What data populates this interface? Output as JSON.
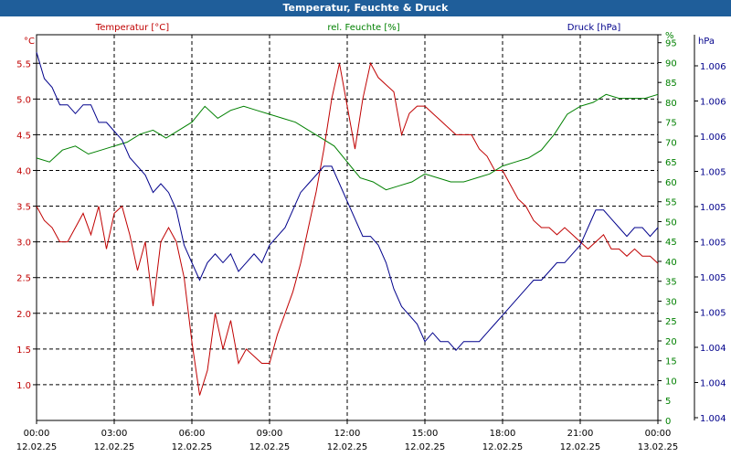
{
  "window": {
    "title": "Temperatur, Feuchte & Druck"
  },
  "chart_data": {
    "type": "line",
    "title": "Temperatur, Feuchte & Druck",
    "grid": true,
    "xlim": [
      0,
      24
    ],
    "x_ticks": [
      {
        "time": "00:00",
        "date": "12.02.25",
        "x": 0
      },
      {
        "time": "03:00",
        "date": "12.02.25",
        "x": 3
      },
      {
        "time": "06:00",
        "date": "12.02.25",
        "x": 6
      },
      {
        "time": "09:00",
        "date": "12.02.25",
        "x": 9
      },
      {
        "time": "12:00",
        "date": "12.02.25",
        "x": 12
      },
      {
        "time": "15:00",
        "date": "12.02.25",
        "x": 15
      },
      {
        "time": "18:00",
        "date": "12.02.25",
        "x": 18
      },
      {
        "time": "21:00",
        "date": "12.02.25",
        "x": 21
      },
      {
        "time": "00:00",
        "date": "13.02.25",
        "x": 24
      }
    ],
    "axes": {
      "temperature": {
        "label": "Temperatur [°C]",
        "unit": "°C",
        "ylim": [
          0.5,
          5.9
        ],
        "ticks": [
          "1.0",
          "1.5",
          "2.0",
          "2.5",
          "3.0",
          "3.5",
          "4.0",
          "4.5",
          "5.0",
          "5.5"
        ],
        "color": "#c00000"
      },
      "humidity": {
        "label": "rel. Feuchte [%]",
        "unit": "%",
        "ylim": [
          0,
          97
        ],
        "ticks": [
          "0",
          "5",
          "10",
          "15",
          "20",
          "25",
          "30",
          "35",
          "40",
          "45",
          "50",
          "55",
          "60",
          "65",
          "70",
          "75",
          "80",
          "85",
          "90",
          "95",
          "%"
        ],
        "color": "#008000"
      },
      "pressure": {
        "label": "Druck [hPa]",
        "unit": "hPa",
        "ylim": [
          1004.0,
          1006.2
        ],
        "ticks": [
          "1.004",
          "1.004",
          "1.004",
          "1.005",
          "1.005",
          "1.005",
          "1.005",
          "1.005",
          "1.006",
          "1.006",
          "1.006"
        ],
        "color": "#00008b"
      }
    },
    "series": [
      {
        "name": "Temperatur [°C]",
        "axis": "temperature",
        "color": "#c00000",
        "x": [
          0,
          0.3,
          0.6,
          0.9,
          1.2,
          1.5,
          1.8,
          2.1,
          2.4,
          2.7,
          3.0,
          3.3,
          3.6,
          3.9,
          4.2,
          4.5,
          4.8,
          5.1,
          5.4,
          5.7,
          6.0,
          6.3,
          6.6,
          6.9,
          7.2,
          7.5,
          7.8,
          8.1,
          8.4,
          8.7,
          9.0,
          9.3,
          9.6,
          9.9,
          10.2,
          10.5,
          10.8,
          11.1,
          11.4,
          11.7,
          12.0,
          12.3,
          12.6,
          12.9,
          13.2,
          13.5,
          13.8,
          14.1,
          14.4,
          14.7,
          15.0,
          15.3,
          15.6,
          15.9,
          16.2,
          16.5,
          16.8,
          17.1,
          17.4,
          17.7,
          18.0,
          18.3,
          18.6,
          18.9,
          19.2,
          19.5,
          19.8,
          20.1,
          20.4,
          20.7,
          21.0,
          21.3,
          21.6,
          21.9,
          22.2,
          22.5,
          22.8,
          23.1,
          23.4,
          23.7,
          24.0
        ],
        "values": [
          3.5,
          3.3,
          3.2,
          3.0,
          3.0,
          3.2,
          3.4,
          3.1,
          3.5,
          2.9,
          3.4,
          3.5,
          3.1,
          2.6,
          3.0,
          2.1,
          3.0,
          3.2,
          3.0,
          2.5,
          1.6,
          0.85,
          1.2,
          2.0,
          1.5,
          1.9,
          1.3,
          1.5,
          1.4,
          1.3,
          1.3,
          1.7,
          2.0,
          2.3,
          2.7,
          3.2,
          3.7,
          4.3,
          5.0,
          5.5,
          4.9,
          4.3,
          5.0,
          5.5,
          5.3,
          5.2,
          5.1,
          4.5,
          4.8,
          4.9,
          4.9,
          4.8,
          4.7,
          4.6,
          4.5,
          4.5,
          4.5,
          4.3,
          4.2,
          4.0,
          4.0,
          3.8,
          3.6,
          3.5,
          3.3,
          3.2,
          3.2,
          3.1,
          3.2,
          3.1,
          3.0,
          2.9,
          3.0,
          3.1,
          2.9,
          2.9,
          2.8,
          2.9,
          2.8,
          2.8,
          2.7
        ]
      },
      {
        "name": "rel. Feuchte [%]",
        "axis": "humidity",
        "color": "#008000",
        "x": [
          0,
          0.5,
          1.0,
          1.5,
          2.0,
          2.5,
          3.0,
          3.5,
          4.0,
          4.5,
          5.0,
          5.5,
          6.0,
          6.5,
          7.0,
          7.5,
          8.0,
          8.5,
          9.0,
          9.5,
          10.0,
          10.5,
          11.0,
          11.5,
          12.0,
          12.5,
          13.0,
          13.5,
          14.0,
          14.5,
          15.0,
          15.5,
          16.0,
          16.5,
          17.0,
          17.5,
          18.0,
          18.5,
          19.0,
          19.5,
          20.0,
          20.5,
          21.0,
          21.5,
          22.0,
          22.5,
          23.0,
          23.5,
          24.0
        ],
        "values": [
          66,
          65,
          68,
          69,
          67,
          68,
          69,
          70,
          72,
          73,
          71,
          73,
          75,
          79,
          76,
          78,
          79,
          78,
          77,
          76,
          75,
          73,
          71,
          69,
          65,
          61,
          60,
          58,
          59,
          60,
          62,
          61,
          60,
          60,
          61,
          62,
          64,
          65,
          66,
          68,
          72,
          77,
          79,
          80,
          82,
          81,
          81,
          81,
          82
        ]
      },
      {
        "name": "Druck [hPa]",
        "axis": "pressure",
        "color": "#00008b",
        "x": [
          0,
          0.3,
          0.6,
          0.9,
          1.2,
          1.5,
          1.8,
          2.1,
          2.4,
          2.7,
          3.0,
          3.3,
          3.6,
          3.9,
          4.2,
          4.5,
          4.8,
          5.1,
          5.4,
          5.7,
          6.0,
          6.3,
          6.6,
          6.9,
          7.2,
          7.5,
          7.8,
          8.1,
          8.4,
          8.7,
          9.0,
          9.3,
          9.6,
          9.9,
          10.2,
          10.5,
          10.8,
          11.1,
          11.4,
          11.7,
          12.0,
          12.3,
          12.6,
          12.9,
          13.2,
          13.5,
          13.8,
          14.1,
          14.4,
          14.7,
          15.0,
          15.3,
          15.6,
          15.9,
          16.2,
          16.5,
          16.8,
          17.1,
          17.4,
          17.7,
          18.0,
          18.3,
          18.6,
          18.9,
          19.2,
          19.5,
          19.8,
          20.1,
          20.4,
          20.7,
          21.0,
          21.3,
          21.6,
          21.9,
          22.2,
          22.5,
          22.8,
          23.1,
          23.4,
          23.7,
          24.0
        ],
        "values": [
          1006.1,
          1005.95,
          1005.9,
          1005.8,
          1005.8,
          1005.75,
          1005.8,
          1005.8,
          1005.7,
          1005.7,
          1005.65,
          1005.6,
          1005.5,
          1005.45,
          1005.4,
          1005.3,
          1005.35,
          1005.3,
          1005.2,
          1005.0,
          1004.9,
          1004.8,
          1004.9,
          1004.95,
          1004.9,
          1004.95,
          1004.85,
          1004.9,
          1004.95,
          1004.9,
          1005.0,
          1005.05,
          1005.1,
          1005.2,
          1005.3,
          1005.35,
          1005.4,
          1005.45,
          1005.45,
          1005.35,
          1005.25,
          1005.15,
          1005.05,
          1005.05,
          1005.0,
          1004.9,
          1004.75,
          1004.65,
          1004.6,
          1004.55,
          1004.45,
          1004.5,
          1004.45,
          1004.45,
          1004.4,
          1004.45,
          1004.45,
          1004.45,
          1004.5,
          1004.55,
          1004.6,
          1004.65,
          1004.7,
          1004.75,
          1004.8,
          1004.8,
          1004.85,
          1004.9,
          1004.9,
          1004.95,
          1005.0,
          1005.1,
          1005.2,
          1005.2,
          1005.15,
          1005.1,
          1005.05,
          1005.1,
          1005.1,
          1005.05,
          1005.1
        ]
      }
    ]
  }
}
